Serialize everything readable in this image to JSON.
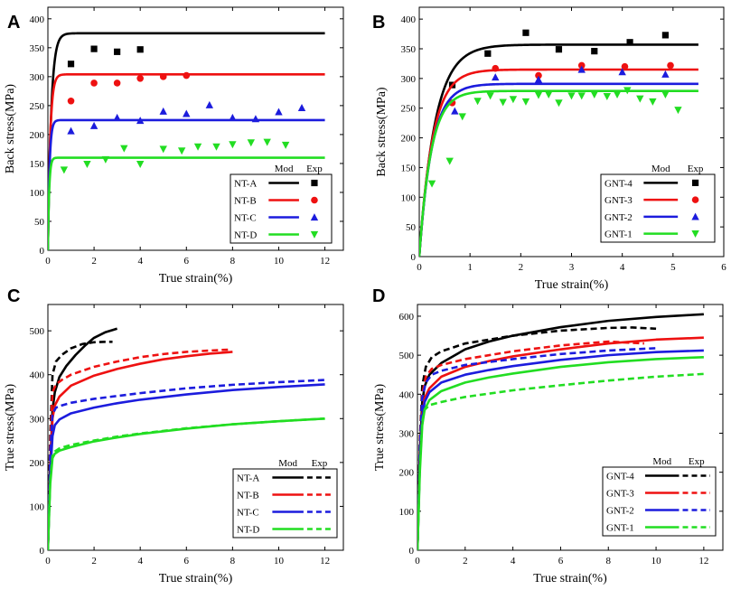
{
  "chart_data": [
    {
      "panel": "A",
      "type": "line",
      "title": "",
      "xlabel": "True strain(%)",
      "ylabel": "Back stress(MPa)",
      "xlim": [
        0,
        12.8
      ],
      "ylim": [
        0,
        420
      ],
      "xticks": [
        0,
        2,
        4,
        6,
        8,
        10,
        12
      ],
      "yticks": [
        0,
        50,
        100,
        150,
        200,
        250,
        300,
        350,
        400
      ],
      "legend": {
        "position": "bottom-right",
        "header_mod": "Mod",
        "header_exp": "Exp",
        "exp_style": "markers"
      },
      "series": [
        {
          "name": "NT-A",
          "color": "#000000",
          "marker": "square",
          "model": {
            "x_end": 12,
            "sat": 375,
            "k": 7.0
          },
          "exp": {
            "x": [
              1.0,
              2.0,
              3.0,
              4.0
            ],
            "y": [
              322,
              348,
              343,
              347
            ]
          }
        },
        {
          "name": "NT-B",
          "color": "#ee1111",
          "marker": "circle",
          "model": {
            "x_end": 12,
            "sat": 304,
            "k": 10.0
          },
          "exp": {
            "x": [
              1.0,
              2.0,
              3.0,
              4.0,
              5.0,
              6.0
            ],
            "y": [
              258,
              289,
              289,
              297,
              300,
              302
            ]
          }
        },
        {
          "name": "NT-C",
          "color": "#1c1cdd",
          "marker": "triangle-up",
          "model": {
            "x_end": 12,
            "sat": 225,
            "k": 14.0
          },
          "exp": {
            "x": [
              1.0,
              2.0,
              3.0,
              4.0,
              5.0,
              6.0,
              7.0,
              8.0,
              9.0,
              10.0,
              11.0
            ],
            "y": [
              206,
              215,
              229,
              224,
              240,
              236,
              251,
              229,
              227,
              239,
              246
            ]
          }
        },
        {
          "name": "NT-D",
          "color": "#22dd22",
          "marker": "triangle-down",
          "model": {
            "x_end": 12,
            "sat": 160,
            "k": 18.0
          },
          "exp": {
            "x": [
              0.7,
              1.7,
              2.5,
              3.3,
              4.0,
              5.0,
              5.8,
              6.5,
              7.3,
              8.0,
              8.8,
              9.5,
              10.3
            ],
            "y": [
              139,
              149,
              157,
              176,
              149,
              175,
              172,
              179,
              179,
              183,
              186,
              187,
              182
            ]
          }
        }
      ]
    },
    {
      "panel": "B",
      "type": "line",
      "title": "",
      "xlabel": "True strain(%)",
      "ylabel": "Back stress(MPa)",
      "xlim": [
        0,
        6
      ],
      "ylim": [
        0,
        420
      ],
      "xticks": [
        0,
        1,
        2,
        3,
        4,
        5,
        6
      ],
      "yticks": [
        0,
        50,
        100,
        150,
        200,
        250,
        300,
        350,
        400
      ],
      "legend": {
        "position": "bottom-right",
        "header_mod": "Mod",
        "header_exp": "Exp",
        "exp_style": "markers"
      },
      "series": [
        {
          "name": "GNT-4",
          "color": "#000000",
          "marker": "square",
          "model": {
            "x_end": 5.5,
            "sat": 357,
            "k": 3.2
          },
          "exp": {
            "x": [
              0.65,
              1.35,
              2.1,
              2.75,
              3.45,
              4.15,
              4.85
            ],
            "y": [
              289,
              342,
              377,
              349,
              346,
              361,
              373
            ]
          }
        },
        {
          "name": "GNT-3",
          "color": "#ee1111",
          "marker": "circle",
          "model": {
            "x_end": 5.5,
            "sat": 315,
            "k": 3.8
          },
          "exp": {
            "x": [
              0.65,
              1.5,
              2.35,
              3.2,
              4.05,
              4.95
            ],
            "y": [
              259,
              317,
              305,
              322,
              320,
              322
            ]
          }
        },
        {
          "name": "GNT-2",
          "color": "#1c1cdd",
          "marker": "triangle-up",
          "model": {
            "x_end": 5.5,
            "sat": 291,
            "k": 4.0
          },
          "exp": {
            "x": [
              0.7,
              1.5,
              2.35,
              3.2,
              4.0,
              4.85
            ],
            "y": [
              245,
              302,
              298,
              315,
              311,
              307
            ]
          }
        },
        {
          "name": "GNT-1",
          "color": "#22dd22",
          "marker": "triangle-down",
          "model": {
            "x_end": 5.5,
            "sat": 279,
            "k": 4.3
          },
          "exp": {
            "x": [
              0.25,
              0.6,
              0.85,
              1.15,
              1.4,
              1.65,
              1.85,
              2.1,
              2.35,
              2.55,
              2.75,
              3.0,
              3.2,
              3.45,
              3.7,
              3.9,
              4.1,
              4.35,
              4.6,
              4.85,
              5.1
            ],
            "y": [
              123,
              161,
              236,
              262,
              271,
              260,
              265,
              261,
              272,
              273,
              259,
              271,
              271,
              273,
              270,
              273,
              280,
              266,
              261,
              273,
              247
            ]
          }
        }
      ]
    },
    {
      "panel": "C",
      "type": "line",
      "title": "",
      "xlabel": "True strain(%)",
      "ylabel": "True stress(MPa)",
      "xlim": [
        0,
        12.8
      ],
      "ylim": [
        0,
        560
      ],
      "xticks": [
        0,
        2,
        4,
        6,
        8,
        10,
        12
      ],
      "yticks": [
        0,
        100,
        200,
        300,
        400,
        500
      ],
      "legend": {
        "position": "bottom-right",
        "header_mod": "Mod",
        "header_exp": "Exp",
        "exp_style": "dashed"
      },
      "series": [
        {
          "name": "NT-A",
          "color": "#000000",
          "model": {
            "x": [
              0,
              0.1,
              0.2,
              0.3,
              0.5,
              0.8,
              1.2,
              1.6,
              2.0,
              2.5,
              3.0
            ],
            "y": [
              0,
              190,
              320,
              360,
              395,
              420,
              445,
              466,
              484,
              497,
              505
            ]
          },
          "exp": {
            "x": [
              0,
              0.1,
              0.2,
              0.35,
              0.6,
              1.0,
              1.5,
              2.0,
              2.5,
              2.8
            ],
            "y": [
              0,
              260,
              400,
              430,
              445,
              460,
              470,
              474,
              475,
              475
            ]
          }
        },
        {
          "name": "NT-B",
          "color": "#ee1111",
          "model": {
            "x": [
              0,
              0.1,
              0.2,
              0.3,
              0.5,
              1.0,
              2.0,
              3.0,
              4.0,
              5.0,
              6.0,
              7.0,
              8.0
            ],
            "y": [
              0,
              180,
              300,
              330,
              350,
              375,
              398,
              413,
              425,
              435,
              442,
              448,
              452
            ]
          },
          "exp": {
            "x": [
              0,
              0.1,
              0.2,
              0.35,
              0.6,
              1.0,
              2.0,
              3.0,
              4.0,
              5.0,
              6.0,
              7.0,
              7.8
            ],
            "y": [
              0,
              240,
              360,
              378,
              388,
              400,
              418,
              430,
              440,
              447,
              452,
              455,
              457
            ]
          }
        },
        {
          "name": "NT-C",
          "color": "#1c1cdd",
          "model": {
            "x": [
              0,
              0.1,
              0.2,
              0.3,
              0.5,
              1.0,
              2.0,
              3.0,
              4.0,
              6.0,
              8.0,
              10.0,
              12.0
            ],
            "y": [
              0,
              170,
              260,
              285,
              298,
              312,
              325,
              335,
              343,
              355,
              365,
              372,
              378
            ]
          },
          "exp": {
            "x": [
              0,
              0.1,
              0.2,
              0.35,
              0.6,
              1.0,
              2.0,
              4.0,
              6.0,
              8.0,
              10.0,
              12.0
            ],
            "y": [
              0,
              220,
              310,
              325,
              330,
              336,
              345,
              358,
              369,
              377,
              383,
              388
            ]
          }
        },
        {
          "name": "NT-D",
          "color": "#22dd22",
          "model": {
            "x": [
              0,
              0.1,
              0.2,
              0.3,
              0.5,
              1.0,
              2.0,
              3.0,
              4.0,
              6.0,
              8.0,
              10.0,
              12.0
            ],
            "y": [
              0,
              150,
              210,
              220,
              227,
              235,
              248,
              257,
              265,
              277,
              287,
              294,
              300
            ]
          },
          "exp": {
            "x": [
              0,
              0.1,
              0.2,
              0.3,
              0.5,
              1.0,
              2.0,
              3.0,
              4.0,
              6.0,
              8.0,
              10.0,
              12.0
            ],
            "y": [
              0,
              160,
              215,
              225,
              232,
              240,
              250,
              259,
              266,
              278,
              287,
              294,
              300
            ]
          }
        }
      ]
    },
    {
      "panel": "D",
      "type": "line",
      "title": "",
      "xlabel": "True strain(%)",
      "ylabel": "True stress(MPa)",
      "xlim": [
        0,
        12.8
      ],
      "ylim": [
        0,
        630
      ],
      "xticks": [
        0,
        2,
        4,
        6,
        8,
        10,
        12
      ],
      "yticks": [
        0,
        100,
        200,
        300,
        400,
        500,
        600
      ],
      "legend": {
        "position": "bottom-right",
        "header_mod": "Mod",
        "header_exp": "Exp",
        "exp_style": "dashed"
      },
      "series": [
        {
          "name": "GNT-4",
          "color": "#000000",
          "model": {
            "x": [
              0,
              0.1,
              0.2,
              0.3,
              0.5,
              1.0,
              2.0,
              3.0,
              4.0,
              6.0,
              8.0,
              10.0,
              12.0
            ],
            "y": [
              0,
              250,
              380,
              420,
              450,
              480,
              515,
              535,
              550,
              572,
              588,
              598,
              605
            ]
          },
          "exp": {
            "x": [
              0,
              0.1,
              0.2,
              0.35,
              0.6,
              1.0,
              2.0,
              4.0,
              6.0,
              8.0,
              9.0,
              10.0
            ],
            "y": [
              0,
              280,
              420,
              470,
              495,
              510,
              530,
              550,
              563,
              570,
              571,
              568
            ]
          }
        },
        {
          "name": "GNT-3",
          "color": "#ee1111",
          "model": {
            "x": [
              0,
              0.1,
              0.2,
              0.3,
              0.5,
              1.0,
              2.0,
              3.0,
              4.0,
              6.0,
              8.0,
              10.0,
              12.0
            ],
            "y": [
              0,
              230,
              350,
              390,
              415,
              445,
              470,
              485,
              497,
              515,
              530,
              540,
              545
            ]
          },
          "exp": {
            "x": [
              0,
              0.1,
              0.2,
              0.35,
              0.6,
              1.0,
              2.0,
              4.0,
              6.0,
              8.0,
              9.5
            ],
            "y": [
              0,
              270,
              400,
              445,
              465,
              475,
              490,
              510,
              525,
              535,
              530
            ]
          }
        },
        {
          "name": "GNT-2",
          "color": "#1c1cdd",
          "model": {
            "x": [
              0,
              0.1,
              0.2,
              0.3,
              0.5,
              1.0,
              2.0,
              3.0,
              4.0,
              6.0,
              8.0,
              10.0,
              12.0
            ],
            "y": [
              0,
              220,
              340,
              380,
              405,
              430,
              450,
              462,
              472,
              488,
              500,
              508,
              512
            ]
          },
          "exp": {
            "x": [
              0,
              0.1,
              0.2,
              0.35,
              0.6,
              1.0,
              2.0,
              4.0,
              6.0,
              8.0,
              10.0
            ],
            "y": [
              0,
              260,
              390,
              430,
              450,
              460,
              475,
              490,
              503,
              512,
              518
            ]
          }
        },
        {
          "name": "GNT-1",
          "color": "#22dd22",
          "model": {
            "x": [
              0,
              0.1,
              0.2,
              0.3,
              0.5,
              1.0,
              2.0,
              3.0,
              4.0,
              6.0,
              8.0,
              10.0,
              12.0
            ],
            "y": [
              0,
              200,
              320,
              360,
              385,
              408,
              430,
              443,
              453,
              470,
              482,
              490,
              495
            ]
          },
          "exp": {
            "x": [
              0,
              0.1,
              0.2,
              0.3,
              0.5,
              1.0,
              2.0,
              4.0,
              6.0,
              8.0,
              10.0,
              12.0
            ],
            "y": [
              0,
              220,
              330,
              360,
              372,
              380,
              393,
              410,
              423,
              435,
              445,
              452
            ]
          }
        }
      ]
    }
  ]
}
